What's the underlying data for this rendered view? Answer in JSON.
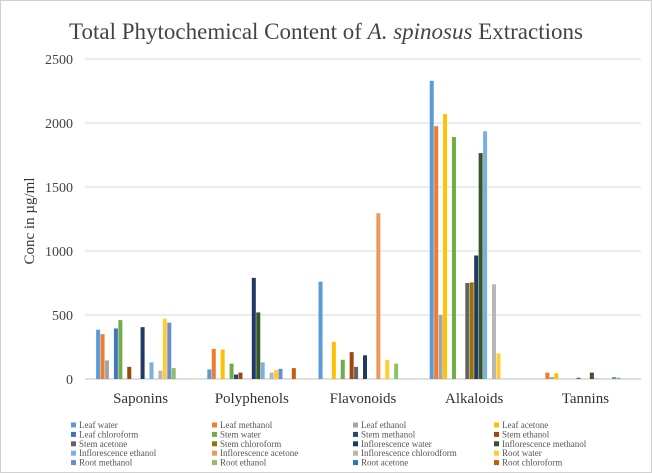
{
  "chart_data": {
    "type": "bar",
    "title_prefix": "Total Phytochemical Content of ",
    "title_italic": "A. spinosus",
    "title_suffix": " Extractions",
    "ylabel": "Conc in µg/ml",
    "xlabel": "",
    "ylim": [
      0,
      2500
    ],
    "yticks": [
      0,
      500,
      1000,
      1500,
      2000,
      2500
    ],
    "grid": true,
    "legend_position": "bottom",
    "categories": [
      "Saponins",
      "Polyphenols",
      "Flavonoids",
      "Alkaloids",
      "Tannins"
    ],
    "series": [
      {
        "name": "Leaf water",
        "color": "#5b9bd5",
        "values": [
          385,
          75,
          760,
          2330,
          0
        ]
      },
      {
        "name": "Leaf  methanol",
        "color": "#ed7d31",
        "values": [
          350,
          235,
          0,
          1975,
          50
        ]
      },
      {
        "name": "Leaf ethanol",
        "color": "#a5a5a5",
        "values": [
          145,
          0,
          0,
          500,
          15
        ]
      },
      {
        "name": "Leaf acetone",
        "color": "#ffc000",
        "values": [
          0,
          230,
          290,
          2070,
          45
        ]
      },
      {
        "name": "Leaf chloroform",
        "color": "#4472c4",
        "values": [
          395,
          0,
          0,
          0,
          0
        ]
      },
      {
        "name": "Stem water",
        "color": "#70ad47",
        "values": [
          460,
          120,
          150,
          1890,
          0
        ]
      },
      {
        "name": "Stem methanol",
        "color": "#264478",
        "values": [
          0,
          35,
          0,
          0,
          0
        ]
      },
      {
        "name": "Stem ethanol",
        "color": "#9e480e",
        "values": [
          95,
          50,
          210,
          0,
          0
        ]
      },
      {
        "name": "Stem acetone",
        "color": "#636363",
        "values": [
          0,
          0,
          95,
          750,
          10
        ]
      },
      {
        "name": "Stem chloroform",
        "color": "#997300",
        "values": [
          0,
          0,
          0,
          755,
          0
        ]
      },
      {
        "name": "Inflorescence water",
        "color": "#203864",
        "values": [
          405,
          790,
          185,
          965,
          0
        ]
      },
      {
        "name": "Inflorescence methanol",
        "color": "#375623",
        "values": [
          0,
          520,
          0,
          1765,
          50
        ]
      },
      {
        "name": "Inflorescence ethanol",
        "color": "#7cafdd",
        "values": [
          130,
          130,
          0,
          1935,
          5
        ]
      },
      {
        "name": "Inflorescence acetone",
        "color": "#f1975a",
        "values": [
          0,
          0,
          1295,
          0,
          0
        ]
      },
      {
        "name": "Inflorescence chlorodform",
        "color": "#b7b7b7",
        "values": [
          65,
          50,
          0,
          740,
          0
        ]
      },
      {
        "name": "Root water",
        "color": "#ffcd33",
        "values": [
          470,
          70,
          150,
          200,
          0
        ]
      },
      {
        "name": "Root methanol",
        "color": "#698ed0",
        "values": [
          440,
          80,
          0,
          0,
          15
        ]
      },
      {
        "name": "Root ethanol",
        "color": "#8cc168",
        "values": [
          85,
          0,
          120,
          0,
          10
        ]
      },
      {
        "name": "Root acetone",
        "color": "#2e75b6",
        "values": [
          0,
          0,
          0,
          0,
          0
        ]
      },
      {
        "name": "Root chloroform",
        "color": "#c55a11",
        "values": [
          0,
          85,
          0,
          0,
          0
        ]
      }
    ]
  }
}
